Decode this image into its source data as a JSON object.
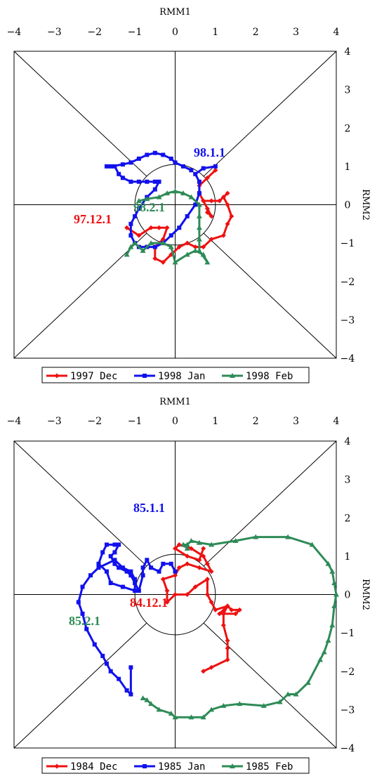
{
  "chart_data": [
    {
      "type": "line",
      "subtype": "RMM phase-space diagram",
      "xlabel": "RMM1",
      "ylabel": "RMM2",
      "xlim": [
        -4,
        4
      ],
      "ylim": [
        -4,
        4
      ],
      "xticks": [
        "−4",
        "−3",
        "−2",
        "−1",
        "0",
        "1",
        "2",
        "3",
        "4"
      ],
      "yticks": [
        "4",
        "3",
        "2",
        "1",
        "0",
        "−1",
        "−2",
        "−3",
        "−4"
      ],
      "legend_position": "bottom",
      "series": [
        {
          "name": "1997 Dec",
          "color": "#ee1111",
          "marker": "diamond",
          "start_label": "97.12.1",
          "x": [
            -1.2,
            -0.9,
            -0.6,
            -0.4,
            -0.2,
            -0.3,
            -0.5,
            -0.5,
            -0.3,
            -0.1,
            0.1,
            0.3,
            0.5,
            0.7,
            0.9,
            1.2,
            1.3,
            1.4,
            1.3,
            1.2,
            1.3,
            1.1,
            0.9,
            0.7,
            0.8,
            0.8,
            0.9,
            0.7,
            0.6,
            0.6,
            0.8,
            1.0
          ],
          "y": [
            -0.6,
            -0.8,
            -0.6,
            -0.6,
            -0.6,
            -0.9,
            -1.1,
            -1.4,
            -1.5,
            -1.3,
            -1.1,
            -1.0,
            -1.1,
            -1.1,
            -0.9,
            -0.8,
            -0.5,
            -0.3,
            0.0,
            0.2,
            0.3,
            0.1,
            0.1,
            0.1,
            -0.1,
            -0.2,
            -0.3,
            0.1,
            0.3,
            0.5,
            0.7,
            0.9
          ]
        },
        {
          "name": "1998 Jan",
          "color": "#1111ee",
          "marker": "square",
          "start_label": "98.1.1",
          "x": [
            1.0,
            0.7,
            0.5,
            0.6,
            0.6,
            0.5,
            0.3,
            0.1,
            -0.1,
            -0.3,
            -0.5,
            -0.7,
            -0.9,
            -1.0,
            -1.1,
            -1.1,
            -1.0,
            -0.9,
            -0.7,
            -0.5,
            -0.4,
            -0.5,
            -0.7,
            -0.9,
            -1.1,
            -1.3,
            -1.4,
            -1.5,
            -1.7,
            -1.6,
            -1.3,
            -1.1,
            -0.9,
            -0.7,
            -0.5,
            -0.3,
            -0.1,
            0.0,
            0.2,
            0.4
          ],
          "y": [
            1.0,
            0.95,
            0.8,
            0.6,
            0.3,
            0.0,
            -0.3,
            -0.6,
            -0.8,
            -1.0,
            -1.1,
            -1.1,
            -1.1,
            -1.0,
            -0.8,
            -0.5,
            -0.3,
            -0.1,
            0.2,
            0.4,
            0.6,
            0.6,
            0.6,
            0.6,
            0.6,
            0.7,
            0.8,
            1.0,
            1.0,
            1.0,
            1.05,
            1.1,
            1.2,
            1.3,
            1.35,
            1.3,
            1.2,
            1.1,
            1.0,
            0.9
          ]
        },
        {
          "name": "1998 Feb",
          "color": "#2e8b57",
          "marker": "triangle",
          "start_label": "98.2.1",
          "x": [
            -0.9,
            -0.7,
            -0.4,
            -0.2,
            0.0,
            0.2,
            0.4,
            0.6,
            0.6,
            0.6,
            0.6,
            0.6,
            0.8,
            0.7,
            0.5,
            0.3,
            0.0,
            -0.1,
            -0.3,
            -0.6,
            -0.8,
            -1.0,
            -1.1,
            -1.2
          ],
          "y": [
            0.1,
            0.15,
            0.2,
            0.3,
            0.35,
            0.3,
            0.2,
            0.0,
            -0.3,
            -0.6,
            -0.9,
            -1.2,
            -1.5,
            -1.3,
            -1.2,
            -1.3,
            -1.5,
            -1.1,
            -1.0,
            -1.0,
            -1.2,
            -1.0,
            -1.1,
            -1.3
          ]
        }
      ]
    },
    {
      "type": "line",
      "subtype": "RMM phase-space diagram",
      "xlabel": "RMM1",
      "ylabel": "RMM2",
      "xlim": [
        -4,
        4
      ],
      "ylim": [
        -4,
        4
      ],
      "xticks": [
        "−4",
        "−3",
        "−2",
        "−1",
        "0",
        "1",
        "2",
        "3",
        "4"
      ],
      "yticks": [
        "4",
        "3",
        "2",
        "1",
        "0",
        "−1",
        "−2",
        "−3",
        "−4"
      ],
      "legend_position": "bottom",
      "series": [
        {
          "name": "1984 Dec",
          "color": "#ee1111",
          "marker": "diamond",
          "start_label": "84.12.1",
          "x": [
            0.7,
            0.9,
            1.3,
            1.3,
            1.3,
            1.2,
            1.2,
            1.3,
            1.4,
            1.6,
            1.5,
            1.1,
            1.3,
            1.0,
            0.9,
            0.8,
            0.8,
            0.5,
            0.3,
            0.0,
            -0.2,
            -0.2,
            -0.3,
            0.0,
            0.1,
            0.3,
            0.6,
            0.9,
            0.8,
            0.7,
            0.4,
            0.1,
            0.0,
            0.3,
            0.6,
            0.7
          ],
          "y": [
            -2.0,
            -1.9,
            -1.7,
            -1.4,
            -1.2,
            -0.8,
            -0.5,
            -0.3,
            -0.4,
            -0.4,
            -0.5,
            -0.5,
            -0.3,
            -0.4,
            -0.2,
            0.0,
            0.4,
            0.2,
            0.0,
            0.0,
            -0.2,
            0.1,
            0.4,
            0.5,
            0.7,
            0.8,
            0.7,
            0.6,
            0.8,
            1.0,
            1.2,
            1.3,
            1.2,
            1.0,
            0.9,
            1.2
          ]
        },
        {
          "name": "1985 Jan",
          "color": "#1111ee",
          "marker": "square",
          "start_label": "85.1.1",
          "x": [
            0.0,
            -0.1,
            -0.3,
            -0.4,
            -0.6,
            -0.7,
            -0.8,
            -0.8,
            -0.9,
            -1.0,
            -1.1,
            -1.2,
            -1.4,
            -1.5,
            -1.6,
            -1.5,
            -1.4,
            -1.5,
            -1.7,
            -1.8,
            -1.9,
            -1.7,
            -1.6,
            -1.3,
            -1.0,
            -1.0,
            -1.1,
            -1.3,
            -1.5,
            -1.9,
            -2.1,
            -2.3,
            -2.4,
            -2.3,
            -2.2,
            -2.0,
            -1.8,
            -1.7,
            -1.6,
            -1.4,
            -1.2,
            -1.1,
            -1.1
          ],
          "y": [
            0.6,
            0.8,
            0.8,
            0.6,
            0.7,
            0.9,
            0.7,
            0.5,
            0.1,
            0.3,
            0.5,
            0.6,
            0.7,
            0.8,
            1.0,
            1.1,
            1.3,
            1.3,
            1.3,
            1.1,
            0.8,
            0.6,
            0.3,
            0.2,
            0.1,
            0.4,
            0.6,
            0.7,
            0.9,
            0.7,
            0.5,
            0.2,
            -0.2,
            -0.5,
            -0.9,
            -1.3,
            -1.6,
            -1.8,
            -2.0,
            -2.2,
            -2.5,
            -2.6,
            -1.9
          ]
        },
        {
          "name": "1985 Feb",
          "color": "#2e8b57",
          "marker": "triangle",
          "start_label": "85.2.1",
          "x": [
            -0.8,
            -0.7,
            -0.6,
            -0.4,
            -0.1,
            0.0,
            0.4,
            0.7,
            0.9,
            1.2,
            1.6,
            2.2,
            2.6,
            2.8,
            3.0,
            3.3,
            3.6,
            3.7,
            3.8,
            3.9,
            3.95,
            4.0,
            3.95,
            3.9,
            3.8,
            3.4,
            2.8,
            2.0,
            1.5,
            0.9,
            0.6,
            0.4,
            0.3,
            0.2,
            0.3
          ],
          "y": [
            -2.7,
            -2.75,
            -2.85,
            -3.0,
            -3.1,
            -3.2,
            -3.2,
            -3.2,
            -3.0,
            -2.9,
            -2.85,
            -2.9,
            -2.8,
            -2.6,
            -2.6,
            -2.3,
            -1.7,
            -1.5,
            -1.2,
            -0.8,
            -0.3,
            0.0,
            0.3,
            0.6,
            0.8,
            1.3,
            1.5,
            1.5,
            1.4,
            1.3,
            1.35,
            1.4,
            1.3,
            1.3,
            1.2
          ]
        }
      ]
    }
  ]
}
